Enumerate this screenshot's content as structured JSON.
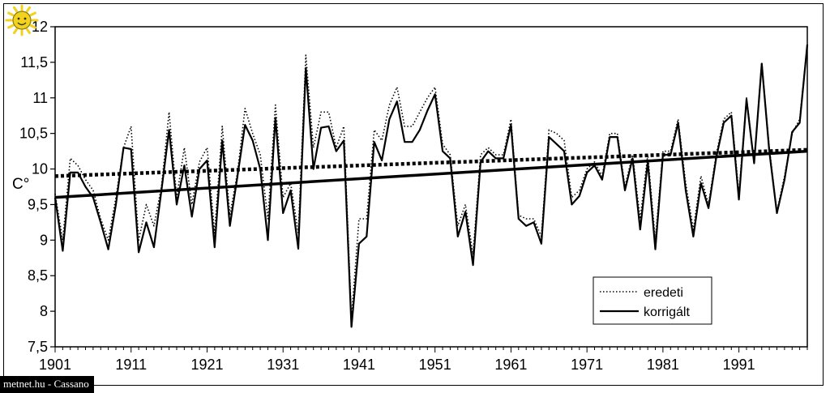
{
  "watermark": {
    "credit_text": "metnet.hu - Cassano",
    "logo_icon": "sun-icon",
    "logo_color": "#f2d21c"
  },
  "chart_data": {
    "type": "line",
    "ylabel": "C°",
    "xlabel": "",
    "xlim": [
      1901,
      2000
    ],
    "ylim": [
      7.5,
      12
    ],
    "x_ticks": [
      1901,
      1911,
      1921,
      1931,
      1941,
      1951,
      1961,
      1971,
      1981,
      1991
    ],
    "y_ticks": [
      "7,5",
      "8",
      "8,5",
      "9",
      "9,5",
      "10",
      "10,5",
      "11",
      "11,5",
      "12"
    ],
    "y_tick_values": [
      7.5,
      8,
      8.5,
      9,
      9.5,
      10,
      10.5,
      11,
      11.5,
      12
    ],
    "legend_position": "bottom-right",
    "series": [
      {
        "name": "eredeti",
        "style": "dotted",
        "trend": [
          9.9,
          10.27
        ],
        "values": [
          9.65,
          9.0,
          10.15,
          10.05,
          9.85,
          9.7,
          9.3,
          9.0,
          9.6,
          10.3,
          10.6,
          9.0,
          9.5,
          9.2,
          9.75,
          10.8,
          9.6,
          10.3,
          9.5,
          10.1,
          10.3,
          9.1,
          10.6,
          9.35,
          9.95,
          10.85,
          10.5,
          10.2,
          9.3,
          10.9,
          9.6,
          9.8,
          9.1,
          11.6,
          10.3,
          10.8,
          10.8,
          10.3,
          10.6,
          7.9,
          9.3,
          9.3,
          10.55,
          10.4,
          10.9,
          11.15,
          10.6,
          10.6,
          10.8,
          11.0,
          11.15,
          10.35,
          10.2,
          9.2,
          9.5,
          8.8,
          10.2,
          10.3,
          10.2,
          10.2,
          10.7,
          9.35,
          9.3,
          9.3,
          9.05,
          10.55,
          10.5,
          10.4,
          9.6,
          9.7,
          10.0,
          10.1,
          9.9,
          10.5,
          10.5,
          9.75,
          10.2,
          9.3,
          10.2,
          9.0,
          10.25,
          10.25,
          10.7,
          9.8,
          9.15,
          9.9,
          9.5,
          10.2,
          10.7,
          10.8,
          9.65,
          11.0,
          10.1,
          11.5,
          10.3,
          9.4,
          9.9,
          10.5,
          10.7,
          11.75
        ]
      },
      {
        "name": "korrigált",
        "style": "solid",
        "trend": [
          9.6,
          10.25
        ],
        "values": [
          9.6,
          8.85,
          9.95,
          9.95,
          9.75,
          9.6,
          9.25,
          8.87,
          9.5,
          10.3,
          10.28,
          8.83,
          9.25,
          8.9,
          9.7,
          10.55,
          9.5,
          10.05,
          9.33,
          10.0,
          10.12,
          8.9,
          10.4,
          9.2,
          9.9,
          10.62,
          10.4,
          10.0,
          9.0,
          10.72,
          9.38,
          9.7,
          8.88,
          11.42,
          10.0,
          10.58,
          10.6,
          10.25,
          10.4,
          7.78,
          8.95,
          9.05,
          10.38,
          10.12,
          10.7,
          10.95,
          10.38,
          10.38,
          10.55,
          10.82,
          11.05,
          10.25,
          10.15,
          9.05,
          9.4,
          8.65,
          10.1,
          10.25,
          10.15,
          10.15,
          10.62,
          9.3,
          9.2,
          9.25,
          8.95,
          10.45,
          10.35,
          10.25,
          9.5,
          9.62,
          9.95,
          10.05,
          9.85,
          10.45,
          10.45,
          9.7,
          10.15,
          9.15,
          10.1,
          8.87,
          10.2,
          10.2,
          10.65,
          9.7,
          9.05,
          9.8,
          9.45,
          10.15,
          10.65,
          10.75,
          9.57,
          10.98,
          10.08,
          11.48,
          10.25,
          9.38,
          9.85,
          10.52,
          10.65,
          11.75
        ]
      }
    ]
  }
}
